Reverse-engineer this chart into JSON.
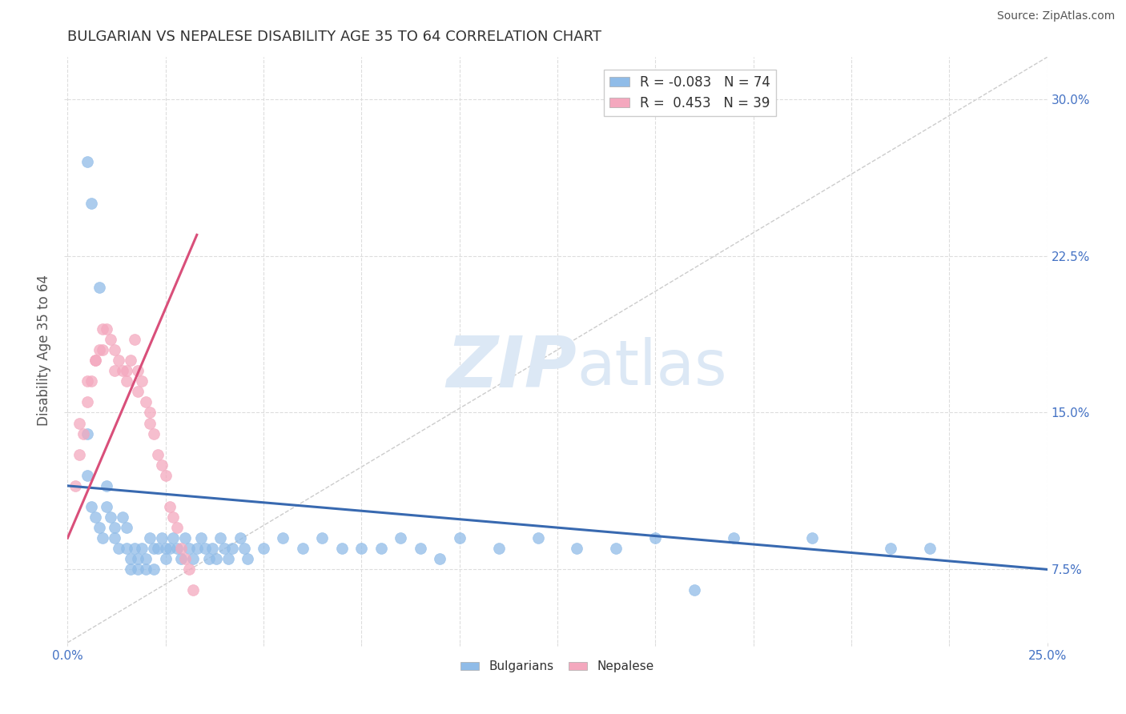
{
  "title": "BULGARIAN VS NEPALESE DISABILITY AGE 35 TO 64 CORRELATION CHART",
  "source": "Source: ZipAtlas.com",
  "xlim": [
    0.0,
    0.25
  ],
  "ylim": [
    0.04,
    0.32
  ],
  "ylabel": "Disability Age 35 to 64",
  "legend_r1": "R = -0.083",
  "legend_n1": "N = 74",
  "legend_r2": "R =  0.453",
  "legend_n2": "N = 39",
  "blue_color": "#90bce8",
  "pink_color": "#f4a8be",
  "blue_line_color": "#3869b0",
  "pink_line_color": "#d94f7a",
  "grid_color": "#dddddd",
  "diag_color": "#cccccc",
  "watermark_color": "#dce8f5",
  "tick_color": "#4472c4",
  "ylabel_color": "#555555",
  "title_color": "#333333",
  "source_color": "#555555",
  "y_tick_vals": [
    0.075,
    0.15,
    0.225,
    0.3
  ],
  "y_tick_labels": [
    "7.5%",
    "15.0%",
    "22.5%",
    "30.0%"
  ],
  "x_tick_vals": [
    0.0,
    0.025,
    0.05,
    0.075,
    0.1,
    0.125,
    0.15,
    0.175,
    0.2,
    0.225,
    0.25
  ],
  "x_tick_labels": [
    "0.0%",
    "",
    "",
    "",
    "",
    "",
    "",
    "",
    "",
    "",
    "25.0%"
  ],
  "bulgarian_x": [
    0.005,
    0.005,
    0.006,
    0.007,
    0.008,
    0.009,
    0.01,
    0.01,
    0.011,
    0.012,
    0.012,
    0.013,
    0.014,
    0.015,
    0.015,
    0.016,
    0.016,
    0.017,
    0.018,
    0.018,
    0.019,
    0.02,
    0.02,
    0.021,
    0.022,
    0.022,
    0.023,
    0.024,
    0.025,
    0.025,
    0.026,
    0.027,
    0.028,
    0.029,
    0.03,
    0.031,
    0.032,
    0.033,
    0.034,
    0.035,
    0.036,
    0.037,
    0.038,
    0.039,
    0.04,
    0.041,
    0.042,
    0.044,
    0.045,
    0.046,
    0.05,
    0.055,
    0.06,
    0.065,
    0.07,
    0.075,
    0.08,
    0.085,
    0.09,
    0.095,
    0.1,
    0.11,
    0.12,
    0.13,
    0.14,
    0.15,
    0.17,
    0.19,
    0.21,
    0.22,
    0.005,
    0.006,
    0.008,
    0.16
  ],
  "bulgarian_y": [
    0.14,
    0.12,
    0.105,
    0.1,
    0.095,
    0.09,
    0.115,
    0.105,
    0.1,
    0.095,
    0.09,
    0.085,
    0.1,
    0.095,
    0.085,
    0.08,
    0.075,
    0.085,
    0.08,
    0.075,
    0.085,
    0.08,
    0.075,
    0.09,
    0.085,
    0.075,
    0.085,
    0.09,
    0.085,
    0.08,
    0.085,
    0.09,
    0.085,
    0.08,
    0.09,
    0.085,
    0.08,
    0.085,
    0.09,
    0.085,
    0.08,
    0.085,
    0.08,
    0.09,
    0.085,
    0.08,
    0.085,
    0.09,
    0.085,
    0.08,
    0.085,
    0.09,
    0.085,
    0.09,
    0.085,
    0.085,
    0.085,
    0.09,
    0.085,
    0.08,
    0.09,
    0.085,
    0.09,
    0.085,
    0.085,
    0.09,
    0.09,
    0.09,
    0.085,
    0.085,
    0.27,
    0.25,
    0.21,
    0.065
  ],
  "nepalese_x": [
    0.002,
    0.003,
    0.004,
    0.005,
    0.006,
    0.007,
    0.008,
    0.009,
    0.01,
    0.011,
    0.012,
    0.013,
    0.014,
    0.015,
    0.016,
    0.017,
    0.018,
    0.019,
    0.02,
    0.021,
    0.022,
    0.023,
    0.024,
    0.025,
    0.026,
    0.027,
    0.028,
    0.029,
    0.03,
    0.031,
    0.032,
    0.003,
    0.005,
    0.007,
    0.009,
    0.012,
    0.015,
    0.018,
    0.021
  ],
  "nepalese_y": [
    0.115,
    0.13,
    0.14,
    0.155,
    0.165,
    0.175,
    0.18,
    0.19,
    0.19,
    0.185,
    0.18,
    0.175,
    0.17,
    0.165,
    0.175,
    0.185,
    0.17,
    0.165,
    0.155,
    0.145,
    0.14,
    0.13,
    0.125,
    0.12,
    0.105,
    0.1,
    0.095,
    0.085,
    0.08,
    0.075,
    0.065,
    0.145,
    0.165,
    0.175,
    0.18,
    0.17,
    0.17,
    0.16,
    0.15
  ],
  "blue_line_x": [
    0.0,
    0.25
  ],
  "blue_line_y_start": 0.115,
  "blue_line_y_end": 0.075,
  "pink_line_x": [
    0.0,
    0.033
  ],
  "pink_line_y_start": 0.09,
  "pink_line_y_end": 0.235
}
